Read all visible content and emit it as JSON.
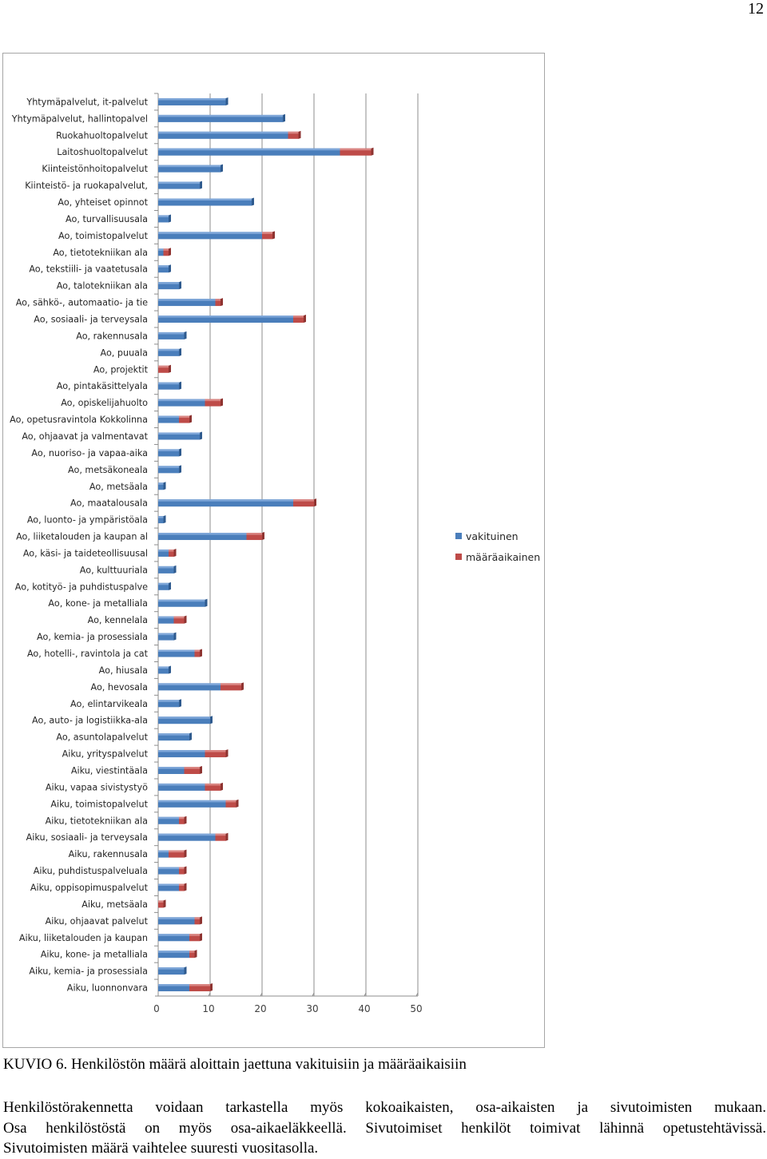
{
  "page": {
    "number": "12"
  },
  "chart_data": {
    "type": "bar",
    "orientation": "horizontal",
    "stacked": true,
    "title": "",
    "xlabel": "",
    "ylabel": "",
    "xlim": [
      0,
      50
    ],
    "xticks": [
      0,
      10,
      20,
      30,
      40,
      50
    ],
    "grid": "vertical major gridlines",
    "legend": "right",
    "categories": [
      "Yhtymäpalvelut, it-palvelut",
      "Yhtymäpalvelut, hallintopalvel",
      "Ruokahuoltopalvelut",
      "Laitoshuoltopalvelut",
      "Kiinteistönhoitopalvelut",
      "Kiinteistö- ja ruokapalvelut,",
      "Ao, yhteiset opinnot",
      "Ao, turvallisuusala",
      "Ao, toimistopalvelut",
      "Ao, tietotekniikan ala",
      "Ao, tekstiili- ja vaatetusala",
      "Ao, talotekniikan ala",
      "Ao, sähkö-, automaatio- ja tie",
      "Ao, sosiaali- ja terveysala",
      "Ao, rakennusala",
      "Ao, puuala",
      "Ao, projektit",
      "Ao, pintakäsittelyala",
      "Ao, opiskelijahuolto",
      "Ao, opetusravintola Kokkolinna",
      "Ao, ohjaavat ja valmentavat",
      "Ao, nuoriso- ja vapaa-aika",
      "Ao, metsäkoneala",
      "Ao, metsäala",
      "Ao, maatalousala",
      "Ao, luonto- ja ympäristöala",
      "Ao, liiketalouden ja kaupan al",
      "Ao, käsi- ja taideteollisuusal",
      "Ao, kulttuuriala",
      "Ao, kotityö- ja puhdistuspalve",
      "Ao, kone- ja metalliala",
      "Ao, kennelala",
      "Ao, kemia- ja prosessiala",
      "Ao, hotelli-, ravintola ja cat",
      "Ao, hiusala",
      "Ao, hevosala",
      "Ao, elintarvikeala",
      "Ao, auto- ja logistiikka-ala",
      "Ao, asuntolapalvelut",
      "Aiku, yrityspalvelut",
      "Aiku, viestintäala",
      "Aiku, vapaa sivistystyö",
      "Aiku, toimistopalvelut",
      "Aiku, tietotekniikan ala",
      "Aiku, sosiaali- ja terveysala",
      "Aiku, rakennusala",
      "Aiku, puhdistuspalveluala",
      "Aiku, oppisopimuspalvelut",
      "Aiku, metsäala",
      "Aiku, ohjaavat palvelut",
      "Aiku, liiketalouden ja kaupan",
      "Aiku, kone- ja metalliala",
      "Aiku, kemia- ja prosessiala",
      "Aiku, luonnonvara"
    ],
    "series": [
      {
        "name": "vakituinen",
        "color": "#4a7ebb",
        "values": [
          13,
          24,
          25,
          35,
          12,
          8,
          18,
          2,
          20,
          1,
          2,
          4,
          11,
          26,
          5,
          4,
          0,
          4,
          9,
          4,
          8,
          4,
          4,
          1,
          26,
          1,
          17,
          2,
          3,
          2,
          9,
          3,
          3,
          7,
          2,
          12,
          4,
          10,
          6,
          9,
          5,
          9,
          13,
          4,
          11,
          2,
          4,
          4,
          0,
          7,
          6,
          6,
          5,
          6
        ]
      },
      {
        "name": "määräaikainen",
        "color": "#be4b48",
        "values": [
          0,
          0,
          2,
          6,
          0,
          0,
          0,
          0,
          2,
          1,
          0,
          0,
          1,
          2,
          0,
          0,
          2,
          0,
          3,
          2,
          0,
          0,
          0,
          0,
          4,
          0,
          3,
          1,
          0,
          0,
          0,
          2,
          0,
          1,
          0,
          4,
          0,
          0,
          0,
          4,
          3,
          3,
          2,
          1,
          2,
          3,
          1,
          1,
          1,
          1,
          2,
          1,
          0,
          4
        ]
      }
    ]
  },
  "caption": "KUVIO 6. Henkilöstön määrä aloittain jaettuna vakituisiin ja määräaikaisiin",
  "body": {
    "line1": "Henkilöstörakennetta voidaan tarkastella myös kokoaikaisten, osa-aikaisten ja sivutoimisten mukaan.",
    "line2": "Osa henkilöstöstä on myös osa-aikaeläkkeellä. Sivutoimiset henkilöt toimivat lähinnä opetustehtävissä.",
    "line3": "Sivutoimisten määrä vaihtelee suuresti vuositasolla."
  }
}
